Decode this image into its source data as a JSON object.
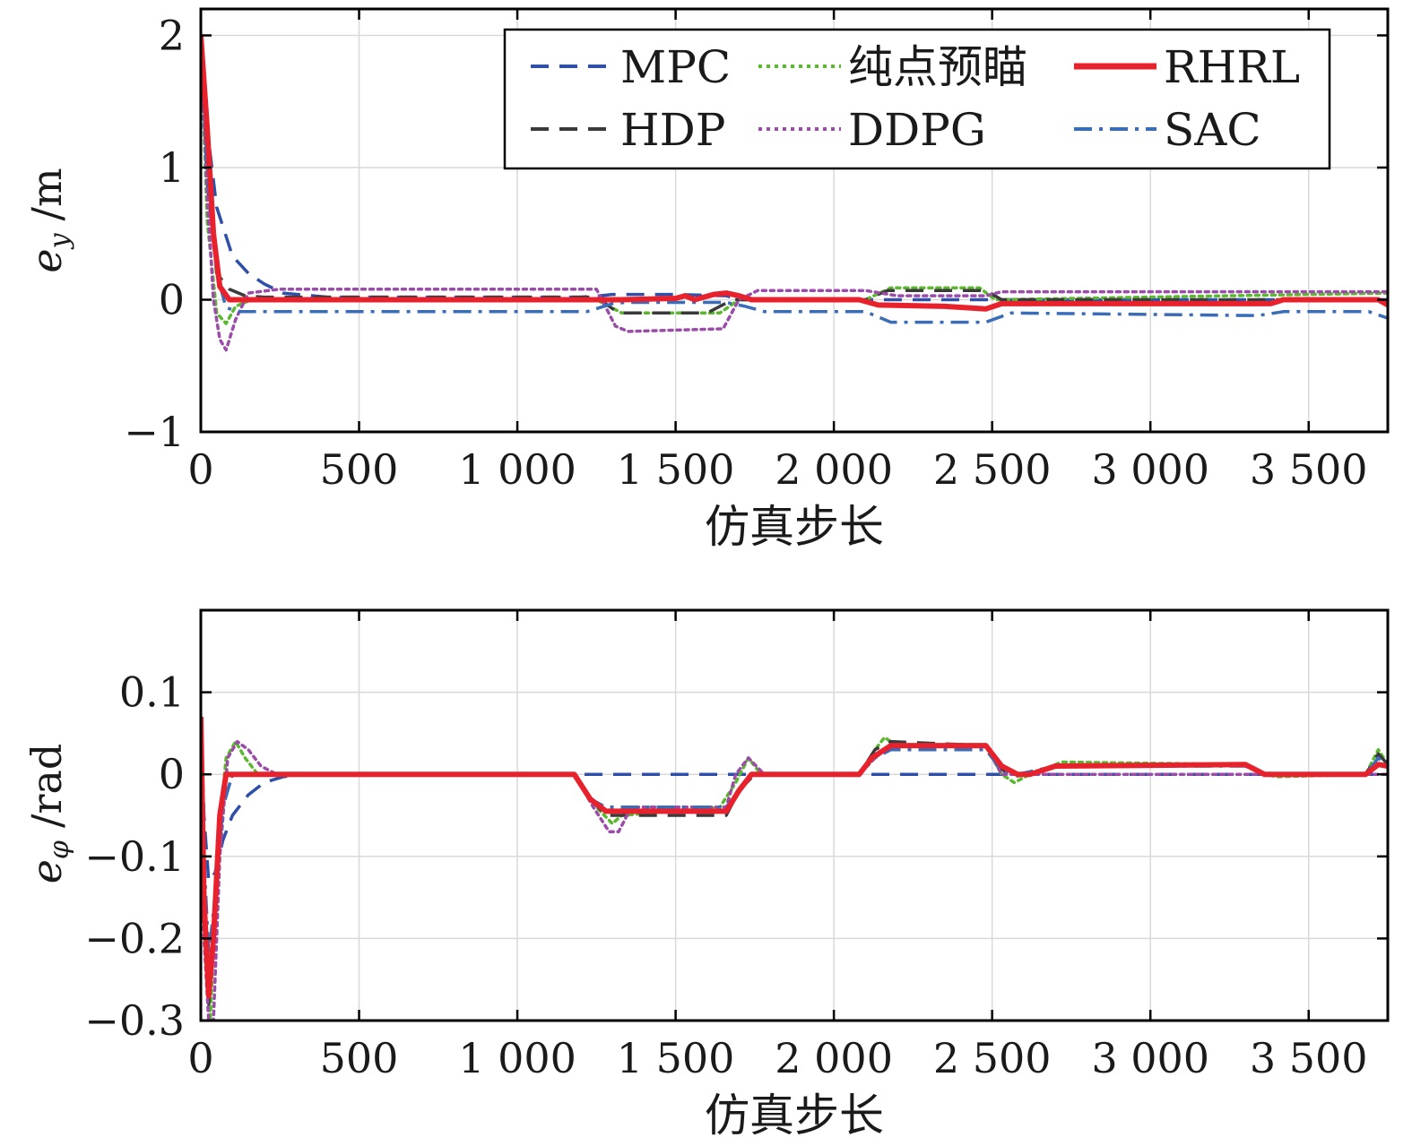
{
  "chart_data": [
    {
      "type": "line",
      "xlabel": "仿真步长",
      "ylabel_main": "e",
      "ylabel_sub": "y",
      "ylabel_unit": "/m",
      "xlim": [
        0,
        3750
      ],
      "ylim": [
        -1,
        2.2
      ],
      "xticks": [
        0,
        500,
        1000,
        1500,
        2000,
        2500,
        3000,
        3500
      ],
      "xtick_labels": [
        "0",
        "500",
        "1 000",
        "1 500",
        "2 000",
        "2 500",
        "3 000",
        "3 500"
      ],
      "yticks": [
        -1,
        0,
        1,
        2
      ],
      "ytick_labels": [
        "−1",
        "0",
        "1",
        "2"
      ],
      "grid": true,
      "legend_position": "top-right",
      "series": [
        {
          "name": "MPC",
          "color": "#2f4fa8",
          "style": "dashed",
          "x": [
            0,
            25,
            50,
            100,
            150,
            200,
            260,
            400,
            1200,
            1260,
            1300,
            1500,
            1660,
            1700,
            3750
          ],
          "y": [
            2.0,
            1.2,
            0.7,
            0.33,
            0.2,
            0.12,
            0.05,
            0.02,
            0.02,
            0.03,
            0.04,
            0.04,
            0.03,
            0.0,
            0.0
          ]
        },
        {
          "name": "纯点预瞄",
          "color": "#5ab82e",
          "style": "dotted",
          "x": [
            0,
            20,
            50,
            80,
            110,
            160,
            260,
            1250,
            1330,
            1640,
            1700,
            2100,
            2180,
            2460,
            2510,
            3750
          ],
          "y": [
            2.0,
            0.6,
            -0.1,
            -0.18,
            -0.05,
            0.0,
            0.0,
            0.0,
            -0.1,
            -0.1,
            0.0,
            0.0,
            0.09,
            0.09,
            0.0,
            0.05
          ]
        },
        {
          "name": "RHRL",
          "color": "#e8222c",
          "style": "solid",
          "x": [
            0,
            20,
            40,
            60,
            90,
            120,
            1260,
            1330,
            1500,
            1530,
            1560,
            1620,
            1660,
            1700,
            1740,
            2080,
            2140,
            2350,
            2480,
            2530,
            3380,
            3420,
            3720,
            3750
          ],
          "y": [
            2.0,
            1.3,
            0.5,
            0.1,
            0.0,
            0.0,
            0.0,
            0.0,
            0.01,
            0.03,
            0.0,
            0.04,
            0.05,
            0.03,
            0.0,
            0.0,
            -0.04,
            -0.05,
            -0.07,
            -0.03,
            -0.03,
            0.0,
            0.0,
            -0.04
          ]
        },
        {
          "name": "HDP",
          "color": "#3a3a3a",
          "style": "dashed",
          "x": [
            0,
            20,
            50,
            90,
            140,
            200,
            1250,
            1320,
            1600,
            1680,
            2100,
            2170,
            2480,
            2530,
            3750
          ],
          "y": [
            2.0,
            0.9,
            0.2,
            0.08,
            0.03,
            0.02,
            0.02,
            -0.1,
            -0.1,
            0.0,
            0.0,
            0.07,
            0.07,
            0.0,
            0.0
          ]
        },
        {
          "name": "DDPG",
          "color": "#9b4ca8",
          "style": "dotted",
          "x": [
            0,
            20,
            40,
            60,
            80,
            110,
            150,
            250,
            1250,
            1310,
            1350,
            1650,
            1700,
            1760,
            2100,
            2200,
            2480,
            2530,
            3750
          ],
          "y": [
            2.0,
            0.8,
            0.0,
            -0.3,
            -0.38,
            -0.15,
            0.05,
            0.08,
            0.08,
            -0.2,
            -0.24,
            -0.22,
            0.0,
            0.07,
            0.07,
            0.03,
            0.03,
            0.06,
            0.06
          ]
        },
        {
          "name": "SAC",
          "color": "#3a6cb8",
          "style": "dashdot",
          "x": [
            0,
            20,
            50,
            80,
            120,
            200,
            1220,
            1300,
            1340,
            1660,
            1720,
            1780,
            2100,
            2180,
            2480,
            2560,
            3340,
            3420,
            3690,
            3750
          ],
          "y": [
            2.0,
            1.0,
            0.2,
            -0.06,
            -0.09,
            -0.09,
            -0.09,
            -0.03,
            -0.02,
            -0.02,
            -0.05,
            -0.09,
            -0.09,
            -0.17,
            -0.17,
            -0.1,
            -0.12,
            -0.09,
            -0.09,
            -0.14
          ]
        }
      ]
    },
    {
      "type": "line",
      "xlabel": "仿真步长",
      "ylabel_main": "e",
      "ylabel_sub": "φ",
      "ylabel_unit": "/rad",
      "xlim": [
        0,
        3750
      ],
      "ylim": [
        -0.3,
        0.2
      ],
      "xticks": [
        0,
        500,
        1000,
        1500,
        2000,
        2500,
        3000,
        3500
      ],
      "xtick_labels": [
        "0",
        "500",
        "1 000",
        "1 500",
        "2 000",
        "2 500",
        "3 000",
        "3 500"
      ],
      "yticks": [
        -0.3,
        -0.2,
        -0.1,
        0,
        0.1
      ],
      "ytick_labels": [
        "−0.3",
        "−0.2",
        "−0.1",
        "0",
        "0.1"
      ],
      "grid": true,
      "series": [
        {
          "name": "MPC",
          "color": "#2f4fa8",
          "style": "dashed",
          "x": [
            0,
            10,
            25,
            45,
            70,
            100,
            150,
            200,
            260,
            320,
            3750
          ],
          "y": [
            0.07,
            -0.05,
            -0.13,
            -0.12,
            -0.08,
            -0.05,
            -0.025,
            -0.01,
            -0.003,
            0.0,
            0.0
          ]
        },
        {
          "name": "纯点预瞄",
          "color": "#5ab82e",
          "style": "dotted",
          "x": [
            0,
            15,
            30,
            50,
            80,
            110,
            140,
            180,
            220,
            1180,
            1250,
            1300,
            1330,
            1640,
            1690,
            1730,
            1770,
            2080,
            2130,
            2160,
            2200,
            2480,
            2530,
            2570,
            2620,
            2720,
            3300,
            3360,
            3400,
            3680,
            3720,
            3750
          ],
          "y": [
            0.07,
            -0.2,
            -0.3,
            -0.1,
            0.02,
            0.04,
            0.02,
            0.0,
            0.0,
            0.0,
            -0.04,
            -0.06,
            -0.05,
            -0.04,
            -0.01,
            0.02,
            0.0,
            0.0,
            0.03,
            0.045,
            0.035,
            0.035,
            0.0,
            -0.01,
            0.0,
            0.015,
            0.012,
            0.0,
            -0.003,
            0.0,
            0.03,
            0.012
          ]
        },
        {
          "name": "RHRL",
          "color": "#e8222c",
          "style": "solid",
          "x": [
            0,
            10,
            25,
            40,
            60,
            80,
            110,
            150,
            1180,
            1230,
            1280,
            1660,
            1700,
            1740,
            2080,
            2120,
            2180,
            2480,
            2530,
            2580,
            2620,
            2700,
            3300,
            3360,
            3680,
            3720,
            3750
          ],
          "y": [
            0.07,
            -0.15,
            -0.27,
            -0.2,
            -0.05,
            0.0,
            0.0,
            0.0,
            0.0,
            -0.03,
            -0.045,
            -0.045,
            -0.02,
            0.0,
            0.0,
            0.02,
            0.035,
            0.035,
            0.01,
            0.0,
            0.0,
            0.01,
            0.012,
            0.0,
            0.0,
            0.012,
            0.01
          ]
        },
        {
          "name": "HDP",
          "color": "#3a3a3a",
          "style": "dashed",
          "x": [
            0,
            10,
            25,
            45,
            70,
            100,
            150,
            200,
            1180,
            1230,
            1280,
            1660,
            1700,
            1750,
            2080,
            2130,
            2180,
            2480,
            2520,
            2560,
            2620,
            2700,
            3300,
            3360,
            3680,
            3720,
            3750
          ],
          "y": [
            0.07,
            -0.15,
            -0.28,
            -0.15,
            -0.03,
            0.0,
            0.0,
            0.0,
            0.0,
            -0.03,
            -0.05,
            -0.05,
            -0.02,
            0.0,
            0.0,
            0.03,
            0.04,
            0.035,
            0.01,
            -0.003,
            0.0,
            0.01,
            0.012,
            0.0,
            0.0,
            0.025,
            0.012
          ]
        },
        {
          "name": "DDPG",
          "color": "#9b4ca8",
          "style": "dotted",
          "x": [
            0,
            10,
            25,
            40,
            60,
            85,
            115,
            150,
            190,
            240,
            1180,
            1240,
            1290,
            1320,
            1360,
            1660,
            1690,
            1730,
            1780,
            2080,
            2130,
            2180,
            2480,
            2530,
            2600,
            3750
          ],
          "y": [
            0.07,
            -0.2,
            -0.3,
            -0.3,
            -0.1,
            0.02,
            0.04,
            0.03,
            0.01,
            0.0,
            0.0,
            -0.04,
            -0.07,
            -0.07,
            -0.04,
            -0.04,
            0.0,
            0.02,
            0.0,
            0.0,
            0.02,
            0.035,
            0.035,
            0.0,
            0.0,
            0.0
          ]
        },
        {
          "name": "SAC",
          "color": "#3a6cb8",
          "style": "dashdot",
          "x": [
            0,
            10,
            25,
            45,
            70,
            100,
            150,
            1180,
            1230,
            1280,
            1660,
            1700,
            1740,
            2080,
            2130,
            2180,
            2480,
            2530,
            2580,
            2700,
            3300,
            3360,
            3680,
            3720,
            3750
          ],
          "y": [
            0.07,
            -0.1,
            -0.22,
            -0.15,
            -0.04,
            0.0,
            0.0,
            0.0,
            -0.03,
            -0.04,
            -0.04,
            -0.02,
            0.0,
            0.0,
            0.02,
            0.03,
            0.03,
            0.005,
            0.0,
            0.01,
            0.01,
            0.0,
            0.0,
            0.02,
            0.01
          ]
        }
      ]
    }
  ]
}
